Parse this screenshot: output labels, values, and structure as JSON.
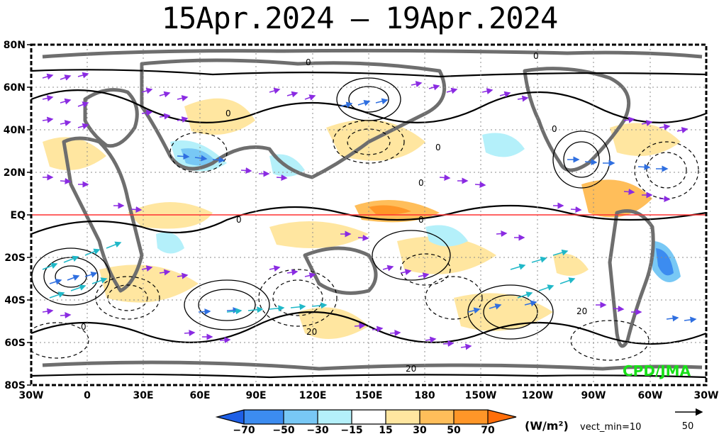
{
  "title": "15Apr.2024 – 19Apr.2024",
  "lat_labels": [
    "80N",
    "60N",
    "40N",
    "20N",
    "EQ",
    "20S",
    "40S",
    "60S",
    "80S"
  ],
  "lon_labels": [
    "30W",
    "0",
    "30E",
    "60E",
    "90E",
    "120E",
    "150E",
    "180",
    "150W",
    "120W",
    "90W",
    "60W",
    "30W"
  ],
  "contour_labels": [
    "0",
    "0",
    "0",
    "0",
    "0",
    "0",
    "0",
    "0",
    "0",
    "20",
    "20",
    "20"
  ],
  "credit": "CPD/JMA",
  "colorbar": {
    "labels": [
      "−70",
      "−50",
      "−30",
      "−15",
      "15",
      "30",
      "50",
      "70"
    ],
    "colors": [
      "#1e5fe6",
      "#3c8cf0",
      "#78c8f5",
      "#b4f0fa",
      "#ffffff",
      "#ffe6a0",
      "#ffbe5a",
      "#ff9628",
      "#ff6e0a"
    ],
    "units": "(W/m²)",
    "vector_min": "vect_min=10",
    "ref_value": "50"
  }
}
